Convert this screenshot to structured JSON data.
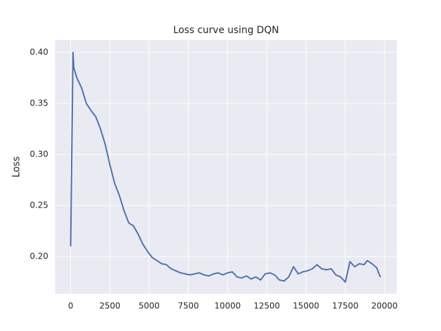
{
  "chart_data": {
    "type": "line",
    "title": "Loss curve using DQN",
    "y_label": "Loss",
    "x": [
      0,
      150,
      200,
      400,
      700,
      1000,
      1300,
      1600,
      1900,
      2200,
      2500,
      2800,
      3100,
      3400,
      3700,
      4000,
      4300,
      4600,
      4900,
      5200,
      5500,
      5800,
      6100,
      6400,
      6700,
      7000,
      7300,
      7600,
      7900,
      8200,
      8500,
      8800,
      9100,
      9400,
      9700,
      10000,
      10300,
      10600,
      10900,
      11200,
      11500,
      11800,
      12100,
      12400,
      12700,
      13000,
      13300,
      13600,
      13900,
      14200,
      14500,
      14800,
      15100,
      15400,
      15700,
      16000,
      16300,
      16600,
      16900,
      17200,
      17500,
      17800,
      18100,
      18400,
      18700,
      18900,
      19200,
      19500,
      19700,
      19750
    ],
    "values": [
      0.21,
      0.4,
      0.385,
      0.375,
      0.365,
      0.35,
      0.343,
      0.337,
      0.325,
      0.31,
      0.29,
      0.272,
      0.26,
      0.245,
      0.233,
      0.23,
      0.222,
      0.212,
      0.205,
      0.199,
      0.196,
      0.193,
      0.192,
      0.188,
      0.186,
      0.184,
      0.183,
      0.182,
      0.183,
      0.184,
      0.182,
      0.181,
      0.183,
      0.184,
      0.182,
      0.184,
      0.185,
      0.18,
      0.179,
      0.181,
      0.178,
      0.18,
      0.177,
      0.183,
      0.184,
      0.182,
      0.177,
      0.176,
      0.18,
      0.19,
      0.183,
      0.185,
      0.186,
      0.188,
      0.192,
      0.188,
      0.187,
      0.188,
      0.182,
      0.18,
      0.175,
      0.195,
      0.19,
      0.193,
      0.192,
      0.196,
      0.193,
      0.189,
      0.181,
      0.18
    ],
    "color": "#4c72b0",
    "xlim": [
      -990,
      20790
    ],
    "ylim": [
      0.1635,
      0.4122
    ],
    "xticks": [
      0,
      2500,
      5000,
      7500,
      10000,
      12500,
      15000,
      17500,
      20000
    ],
    "yticks": [
      {
        "value": 0.2,
        "label": "0.20"
      },
      0.25,
      {
        "value": 0.3,
        "label": "0.30"
      },
      0.35,
      {
        "value": 0.4,
        "label": "0.40"
      }
    ],
    "grid": true,
    "background": "#eaeaf2"
  }
}
